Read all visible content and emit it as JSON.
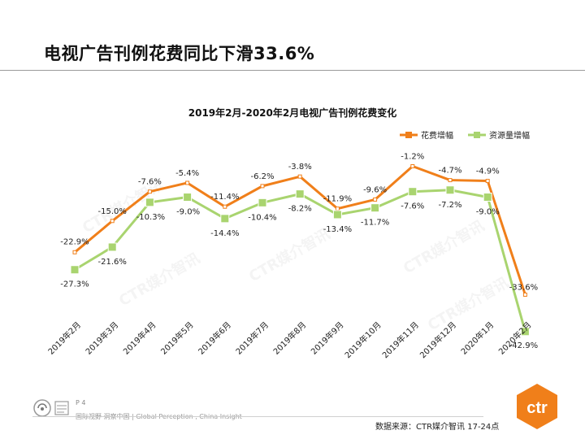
{
  "page": {
    "title": "电视广告刊例花费同比下滑33.6%",
    "page_number": "P 4",
    "slogan": "国际视野  洞察中国 | Global Perception , China Insight",
    "source": "数据来源：CTR媒介智讯    17-24点",
    "watermark": "CTR媒介智讯",
    "logo_text": "ctr"
  },
  "colors": {
    "orange": "#F07F1A",
    "green": "#A9D46F",
    "logo_orange": "#F07F1A"
  },
  "chart_data": {
    "type": "line",
    "title": "2019年2月-2020年2月电视广告刊例花费变化",
    "legend_position": "top-right",
    "categories": [
      "2019年2月",
      "2019年3月",
      "2019年4月",
      "2019年5月",
      "2019年6月",
      "2019年7月",
      "2019年8月",
      "2019年9月",
      "2019年10月",
      "2019年11月",
      "2019年12月",
      "2020年1月",
      "2020年2月"
    ],
    "series": [
      {
        "name": "花费增幅",
        "color": "#F07F1A",
        "values": [
          -22.9,
          -15.0,
          -7.6,
          -5.4,
          -11.4,
          -6.2,
          -3.8,
          -11.9,
          -9.6,
          -1.2,
          -4.7,
          -4.9,
          -33.6
        ],
        "labels": [
          "-22.9%",
          "-15.0%",
          "-7.6%",
          "-5.4%",
          "-11.4%",
          "-6.2%",
          "-3.8%",
          "-11.9%",
          "-9.6%",
          "-1.2%",
          "-4.7%",
          "-4.9%",
          "-33.6%"
        ]
      },
      {
        "name": "资源量增幅",
        "color": "#A9D46F",
        "values": [
          -27.3,
          -21.6,
          -10.3,
          -9.0,
          -14.4,
          -10.4,
          -8.2,
          -13.4,
          -11.7,
          -7.6,
          -7.2,
          -9.0,
          -42.9
        ],
        "labels": [
          "-27.3%",
          "-21.6%",
          "-10.3%",
          "-9.0%",
          "-14.4%",
          "-10.4%",
          "-8.2%",
          "-13.4%",
          "-11.7%",
          "-7.6%",
          "-7.2%",
          "-9.0%",
          "-42.9%"
        ]
      }
    ],
    "grid": false
  }
}
